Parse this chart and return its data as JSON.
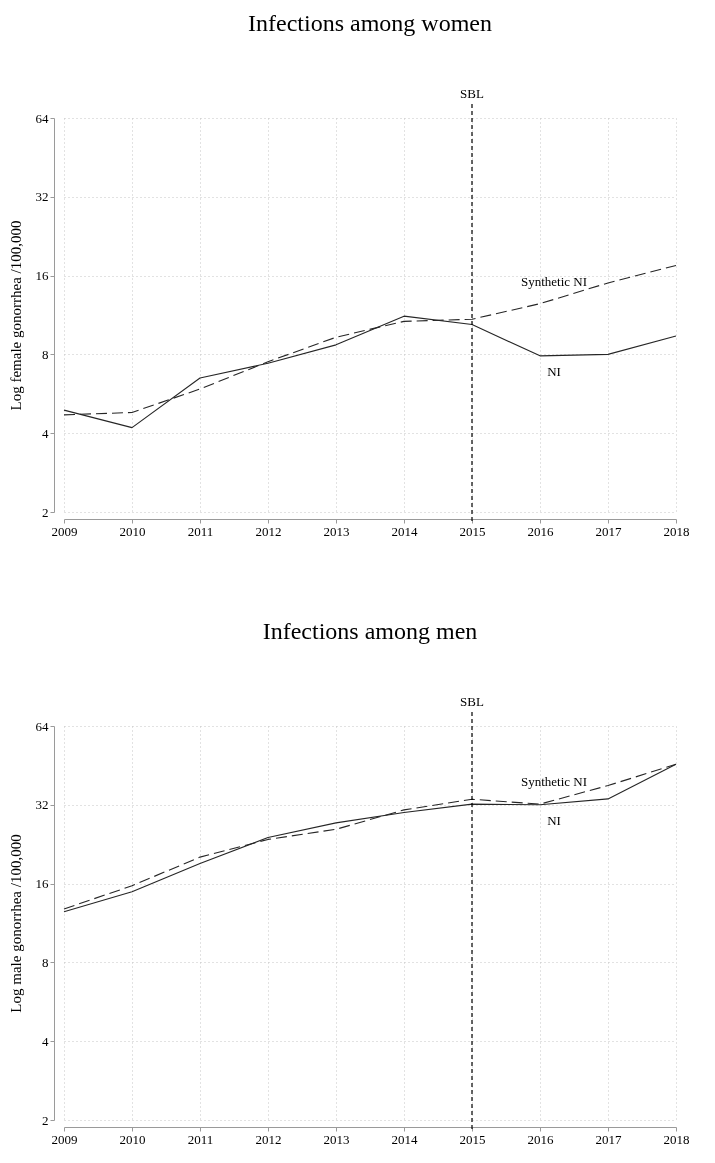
{
  "chart_data": [
    {
      "type": "line",
      "title": "Infections among women",
      "ylabel": "Log female gonorrhea /100,000",
      "x": [
        2009,
        2010,
        2011,
        2012,
        2013,
        2014,
        2015,
        2016,
        2017,
        2018
      ],
      "xlim": [
        2009,
        2018
      ],
      "xticks": [
        2009,
        2010,
        2011,
        2012,
        2013,
        2014,
        2015,
        2016,
        2017,
        2018
      ],
      "ylim": [
        2,
        64
      ],
      "yticks": [
        2,
        4,
        8,
        16,
        32,
        64
      ],
      "log": "y",
      "grid": true,
      "series": [
        {
          "name": "NI",
          "color": "#262626",
          "line_style": "solid",
          "values": [
            4.9,
            4.2,
            6.5,
            7.4,
            8.7,
            11.2,
            10.4,
            7.9,
            8.0,
            9.4
          ]
        },
        {
          "name": "Synthetic NI",
          "color": "#262626",
          "line_style": "dashed",
          "values": [
            4.7,
            4.8,
            5.9,
            7.5,
            9.3,
            10.7,
            10.9,
            12.5,
            15.0,
            17.5
          ]
        }
      ],
      "ref_lines": [
        {
          "axis": "x",
          "value": 2015,
          "label": "SBL",
          "color": "#000000",
          "line_style": "dashed"
        }
      ]
    },
    {
      "type": "line",
      "title": "Infections among men",
      "ylabel": "Log male gonorrhea /100,000",
      "x": [
        2009,
        2010,
        2011,
        2012,
        2013,
        2014,
        2015,
        2016,
        2017,
        2018
      ],
      "xlim": [
        2009,
        2018
      ],
      "xticks": [
        2009,
        2010,
        2011,
        2012,
        2013,
        2014,
        2015,
        2016,
        2017,
        2018
      ],
      "ylim": [
        2,
        64
      ],
      "yticks": [
        2,
        4,
        8,
        16,
        32,
        64
      ],
      "log": "y",
      "grid": true,
      "series": [
        {
          "name": "NI",
          "color": "#262626",
          "line_style": "solid",
          "values": [
            12.5,
            14.9,
            19.1,
            24.0,
            27.3,
            29.9,
            32.2,
            32.0,
            33.7,
            45.7
          ]
        },
        {
          "name": "Synthetic NI",
          "color": "#262626",
          "line_style": "dashed",
          "values": [
            12.8,
            15.7,
            20.2,
            23.6,
            25.8,
            30.6,
            33.6,
            32.2,
            37.9,
            45.7
          ]
        }
      ],
      "ref_lines": [
        {
          "axis": "x",
          "value": 2015,
          "label": "SBL",
          "color": "#000000",
          "line_style": "dashed"
        }
      ]
    }
  ]
}
